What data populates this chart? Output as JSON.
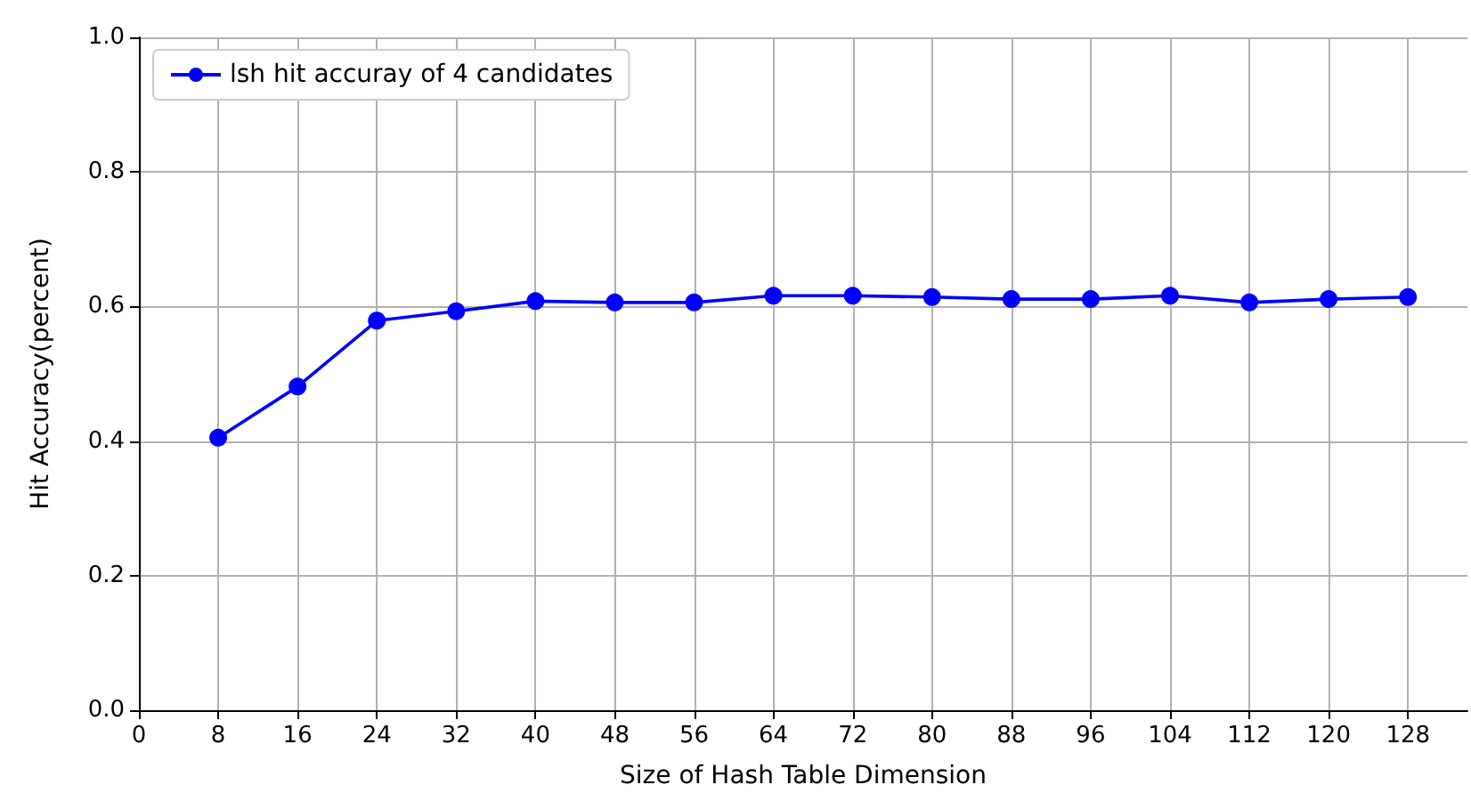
{
  "chart_data": {
    "type": "line",
    "xlabel": "Size of Hash Table Dimension",
    "ylabel": "Hit Accuracy(percent)",
    "x": [
      8,
      16,
      24,
      32,
      40,
      48,
      56,
      64,
      72,
      80,
      88,
      96,
      104,
      112,
      120,
      128
    ],
    "series": [
      {
        "name": "lsh hit accuray of 4 candidates",
        "color": "#0000ff",
        "values": [
          0.405,
          0.481,
          0.579,
          0.593,
          0.608,
          0.606,
          0.606,
          0.616,
          0.616,
          0.614,
          0.611,
          0.611,
          0.616,
          0.606,
          0.611,
          0.614
        ]
      }
    ],
    "xlim": [
      0,
      134
    ],
    "xticks": [
      0,
      8,
      16,
      24,
      32,
      40,
      48,
      56,
      64,
      72,
      80,
      88,
      96,
      104,
      112,
      120,
      128
    ],
    "ylim": [
      0,
      1
    ],
    "yticks": [
      {
        "value": 0,
        "label": "0.0"
      },
      0.2,
      0.4,
      0.6,
      0.8,
      {
        "value": 1,
        "label": "1.0"
      }
    ],
    "grid": true,
    "legend": "top left",
    "marker": "circle",
    "line_style": "solid"
  }
}
